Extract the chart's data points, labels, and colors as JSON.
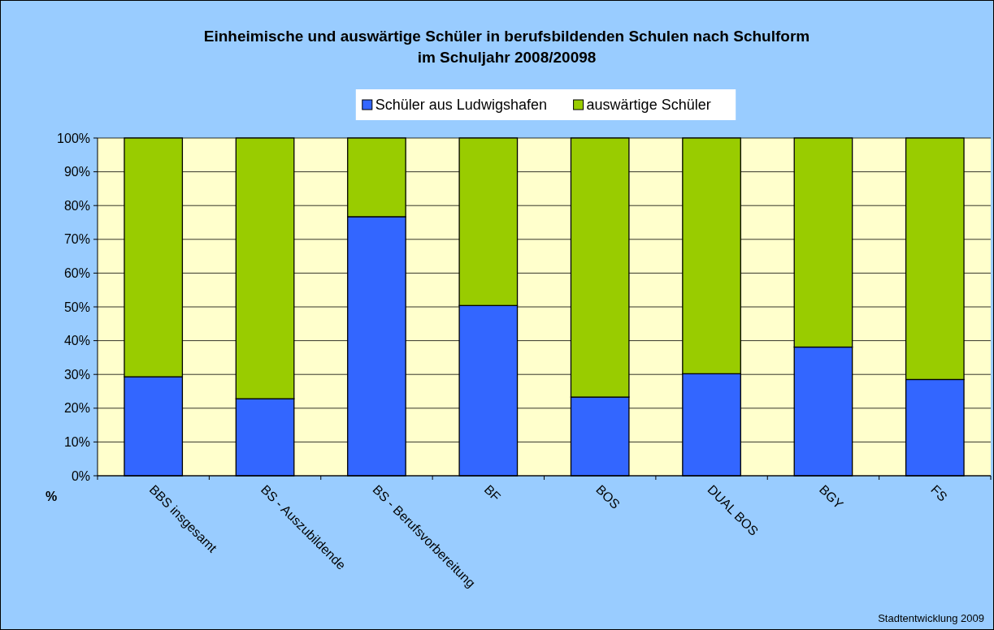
{
  "chart_data": {
    "type": "bar",
    "stacked": true,
    "title": "Einheimische und auswärtige Schüler in berufsbildenden Schulen nach Schulform\nim Schuljahr 2008/20098",
    "ylabel": "%",
    "categories": [
      "BBS insgesamt",
      "BS - Auszubildende",
      "BS - Berufsvorbereitung",
      "BF",
      "BOS",
      "DUAL BOS",
      "BGY",
      "FS"
    ],
    "series": [
      {
        "name": "Schüler aus Ludwigshafen",
        "color": "#3366ff",
        "values": [
          29.3,
          22.8,
          76.7,
          50.4,
          23.3,
          30.2,
          38.1,
          28.5
        ]
      },
      {
        "name": "auswärtige Schüler",
        "color": "#99cc00",
        "values": [
          70.7,
          77.2,
          23.3,
          49.6,
          76.7,
          69.8,
          61.9,
          71.5
        ]
      }
    ],
    "ylim": [
      0,
      100
    ],
    "yticks": [
      {
        "value": 0,
        "label": "0%"
      },
      {
        "value": 10,
        "label": "10%"
      },
      {
        "value": 20,
        "label": "20%"
      },
      {
        "value": 30,
        "label": "30%"
      },
      {
        "value": 40,
        "label": "40%"
      },
      {
        "value": 50,
        "label": "50%"
      },
      {
        "value": 60,
        "label": "60%"
      },
      {
        "value": 70,
        "label": "70%"
      },
      {
        "value": 80,
        "label": "80%"
      },
      {
        "value": 90,
        "label": "90%"
      },
      {
        "value": 100,
        "label": "100%"
      }
    ],
    "grid": "y",
    "legend": "top",
    "annotations": [
      "Stadtentwicklung 2009"
    ]
  }
}
